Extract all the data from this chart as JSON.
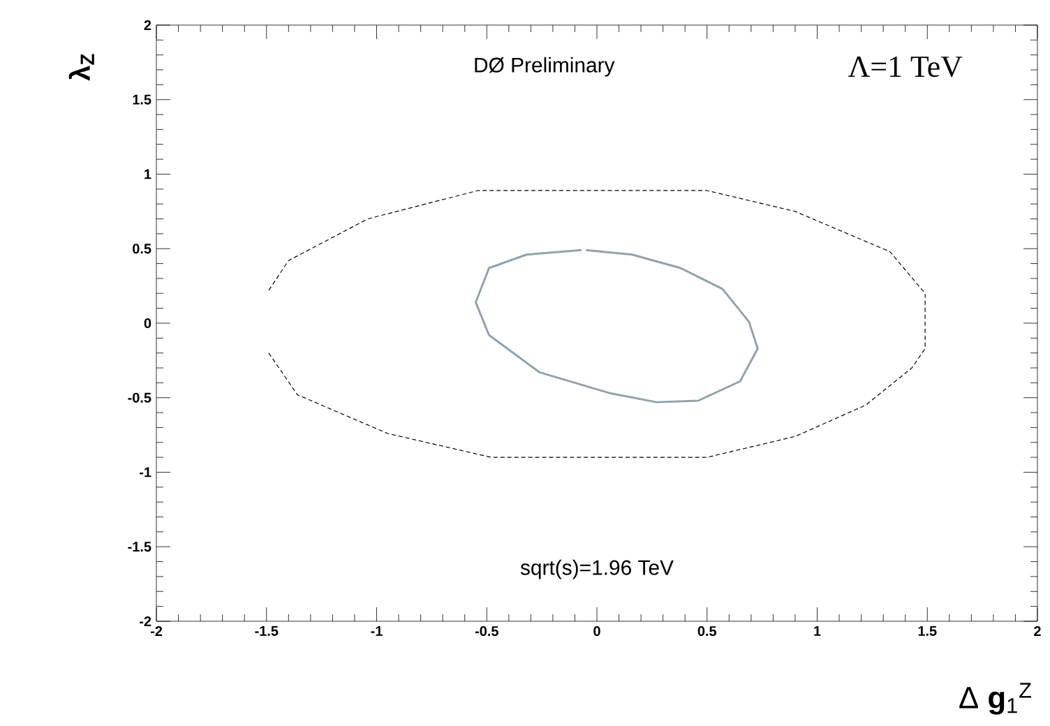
{
  "chart_data": {
    "type": "line",
    "xlabel": "Δ **g**$_{1}$$^{Z}$",
    "ylabel": "λ$_{Z}$",
    "annotations": [
      "DØ Preliminary",
      "Λ=1 TeV",
      "sqrt(s)=1.96 TeV"
    ],
    "series": [
      {
        "color": "#000000",
        "line_style": "dashed",
        "x": [
          -1.49,
          -1.36,
          -0.95,
          -0.48,
          0.5,
          0.9,
          1.22,
          1.43,
          1.49,
          1.49,
          1.33,
          0.9,
          0.5,
          -0.54,
          -1.04,
          -1.4,
          -1.49
        ],
        "values": [
          -0.2,
          -0.48,
          -0.74,
          -0.9,
          -0.9,
          -0.76,
          -0.55,
          -0.3,
          -0.17,
          0.2,
          0.48,
          0.75,
          0.89,
          0.89,
          0.7,
          0.42,
          0.22
        ]
      },
      {
        "color": "#8fa3ad",
        "line_style": "solid",
        "x": [
          -0.07,
          -0.32,
          -0.49,
          -0.55,
          -0.49,
          -0.26,
          0.06,
          0.27,
          0.46,
          0.65,
          0.73,
          0.69,
          0.57,
          0.38,
          0.16,
          -0.05
        ],
        "values": [
          0.49,
          0.46,
          0.37,
          0.14,
          -0.08,
          -0.33,
          -0.47,
          -0.53,
          -0.52,
          -0.39,
          -0.17,
          0.01,
          0.23,
          0.37,
          0.46,
          0.49
        ]
      }
    ],
    "xlim": [
      -2,
      2
    ],
    "ylim": [
      -2,
      2
    ],
    "xticks": [
      -2,
      -1.5,
      -1,
      -0.5,
      0,
      0.5,
      1,
      1.5,
      2
    ],
    "yticks": [
      -2,
      -1.5,
      -1,
      -0.5,
      0,
      0.5,
      1,
      1.5,
      2
    ],
    "grid": false,
    "legend": false,
    "marker": "none"
  }
}
